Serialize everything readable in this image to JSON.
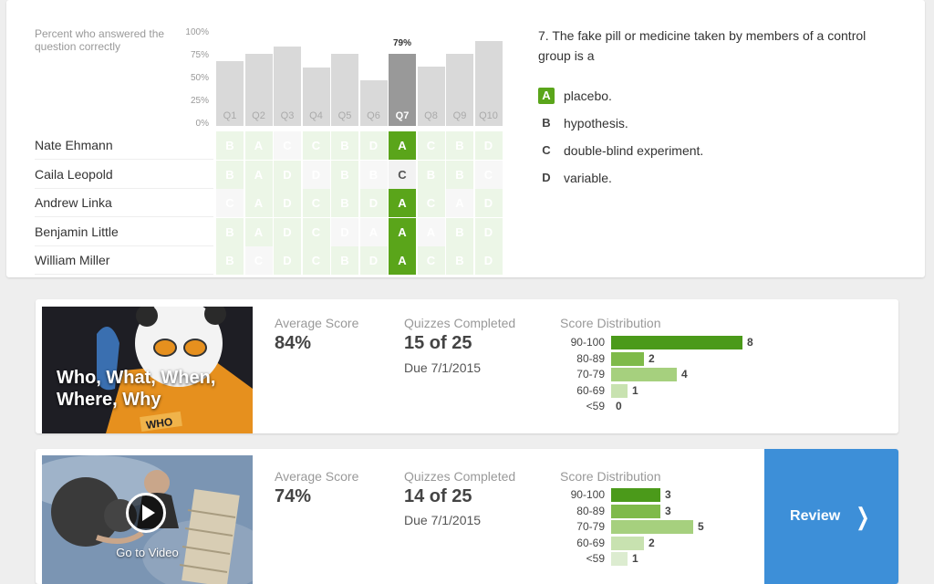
{
  "results": {
    "percent_label": "Percent who answered the question correctly",
    "y_ticks": [
      "100%",
      "75%",
      "50%",
      "25%",
      "0%"
    ],
    "selected_question": "Q7",
    "selected_percent_label": "79%",
    "questions": [
      {
        "label": "Q1",
        "percent": 71
      },
      {
        "label": "Q2",
        "percent": 79
      },
      {
        "label": "Q3",
        "percent": 87
      },
      {
        "label": "Q4",
        "percent": 64
      },
      {
        "label": "Q5",
        "percent": 79
      },
      {
        "label": "Q6",
        "percent": 50
      },
      {
        "label": "Q7",
        "percent": 79
      },
      {
        "label": "Q8",
        "percent": 65
      },
      {
        "label": "Q9",
        "percent": 79
      },
      {
        "label": "Q10",
        "percent": 93
      }
    ],
    "students": [
      {
        "name": "Nate Ehmann",
        "answers": [
          "B",
          "A",
          "C",
          "C",
          "B",
          "D",
          "A",
          "C",
          "B",
          "D"
        ],
        "correct": [
          true,
          true,
          false,
          true,
          true,
          true,
          true,
          true,
          true,
          true
        ]
      },
      {
        "name": "Caila Leopold",
        "answers": [
          "B",
          "A",
          "D",
          "D",
          "B",
          "B",
          "C",
          "B",
          "B",
          "C"
        ],
        "correct": [
          true,
          true,
          true,
          false,
          true,
          false,
          false,
          true,
          true,
          false
        ]
      },
      {
        "name": "Andrew Linka",
        "answers": [
          "C",
          "A",
          "D",
          "C",
          "B",
          "D",
          "A",
          "C",
          "A",
          "D"
        ],
        "correct": [
          false,
          true,
          true,
          true,
          true,
          true,
          true,
          true,
          false,
          true
        ]
      },
      {
        "name": "Benjamin Little",
        "answers": [
          "B",
          "A",
          "D",
          "C",
          "D",
          "A",
          "A",
          "A",
          "B",
          "D"
        ],
        "correct": [
          true,
          true,
          true,
          true,
          false,
          false,
          true,
          false,
          true,
          true
        ]
      },
      {
        "name": "William Miller",
        "answers": [
          "B",
          "C",
          "D",
          "C",
          "B",
          "D",
          "A",
          "C",
          "B",
          "D"
        ],
        "correct": [
          true,
          false,
          true,
          true,
          true,
          true,
          true,
          true,
          true,
          true
        ]
      }
    ]
  },
  "question": {
    "text": "7. The fake pill or medicine taken by members of a control group is a",
    "choices": [
      {
        "letter": "A",
        "text": "placebo.",
        "correct": true
      },
      {
        "letter": "B",
        "text": "hypothesis.",
        "correct": false
      },
      {
        "letter": "C",
        "text": "double-blind experiment.",
        "correct": false
      },
      {
        "letter": "D",
        "text": "variable.",
        "correct": false
      }
    ]
  },
  "quizzes": [
    {
      "thumb_title": "Who, What, When, Where, Why",
      "thumb_badge": "WHO",
      "avg_label": "Average Score",
      "avg_value": "84%",
      "completed_label": "Quizzes Completed",
      "completed_value": "15 of 25",
      "due": "Due 7/1/2015",
      "dist_label": "Score Distribution",
      "distribution": [
        {
          "range": "90-100",
          "count": 8
        },
        {
          "range": "80-89",
          "count": 2
        },
        {
          "range": "70-79",
          "count": 4
        },
        {
          "range": "60-69",
          "count": 1
        },
        {
          "range": "<59",
          "count": 0
        }
      ]
    },
    {
      "thumb_caption": "Go to Video",
      "avg_label": "Average Score",
      "avg_value": "74%",
      "completed_label": "Quizzes Completed",
      "completed_value": "14 of 25",
      "due": "Due 7/1/2015",
      "dist_label": "Score Distribution",
      "distribution": [
        {
          "range": "90-100",
          "count": 3
        },
        {
          "range": "80-89",
          "count": 3
        },
        {
          "range": "70-79",
          "count": 5
        },
        {
          "range": "60-69",
          "count": 2
        },
        {
          "range": "<59",
          "count": 1
        }
      ],
      "review_label": "Review"
    }
  ],
  "colors": {
    "green_dark": "#4b9a1a",
    "green_mid": "#7fba4a",
    "green_light": "#a6d07e",
    "green_pale": "#c8e2b0",
    "green_faint": "#dcecd0",
    "review_blue": "#3d8fd8"
  }
}
